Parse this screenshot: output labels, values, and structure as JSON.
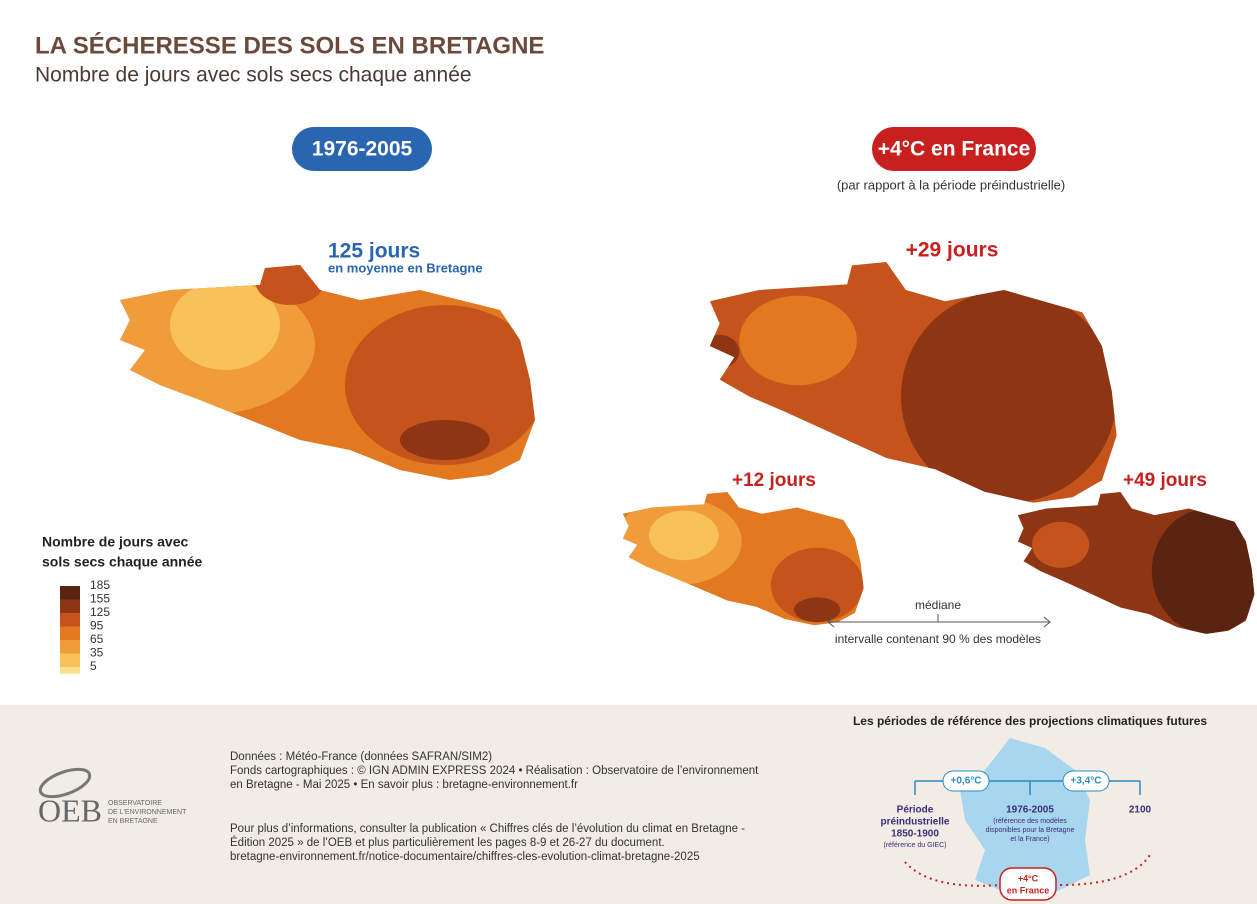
{
  "header": {
    "title": "LA SÉCHERESSE DES SOLS EN BRETAGNE",
    "subtitle": "Nombre de jours avec sols secs chaque année"
  },
  "left_panel": {
    "period": "1976-2005",
    "stat": "125 jours",
    "stat_note": "en moyenne en Bretagne"
  },
  "right_panel": {
    "scenario": "+4°C en France",
    "scenario_note": "(par rapport à la période préindustrielle)",
    "median": "+29 jours",
    "low": "+12 jours",
    "high": "+49 jours",
    "median_label": "médiane",
    "interval_label": "intervalle contenant 90 % des modèles"
  },
  "legend": {
    "title": [
      "Nombre de jours avec",
      "sols secs chaque année"
    ],
    "breaks": [
      185,
      155,
      125,
      95,
      65,
      35,
      5
    ],
    "colors": [
      "#5a2410",
      "#8e3614",
      "#c4541b",
      "#e2781f",
      "#f19c3b",
      "#f8c15a"
    ]
  },
  "footer": {
    "logo": "OEB",
    "logo_text": [
      "OBSERVATOIRE",
      "DE L'ENVIRONNEMENT",
      "EN BRETAGNE"
    ],
    "sources": [
      "Données : Météo-France (données SAFRAN/SIM2)",
      "Fonds cartographiques : © IGN ADMIN EXPRESS 2024 • Réalisation : Observatoire de l’environnement",
      "en Bretagne - Mai 2025  • En savoir plus : bretagne-environnement.fr"
    ],
    "publication": [
      "Pour plus d’informations, consulter la publication « Chiffres clés de l’évolution du climat en Bretagne -",
      "Édition 2025 » de l’OEB et plus particulièrement les pages 8-9 et 26-27 du document.",
      "bretagne-environnement.fr/notice-documentaire/chiffres-cles-evolution-climat-bretagne-2025"
    ]
  },
  "inset": {
    "title": "Les périodes de référence des projections climatiques futures",
    "delta1": "+0,6°C",
    "delta2": "+3,4°C",
    "pre": [
      "Période",
      "préindustrielle",
      "1850-1900"
    ],
    "pre_note": "(référence du GIEC)",
    "ref": "1976-2005",
    "ref_note": [
      "(référence des modèles",
      "disponibles pour la Bretagne",
      "et la France)"
    ],
    "end": "2100",
    "target": [
      "+4°C",
      "en France"
    ]
  }
}
